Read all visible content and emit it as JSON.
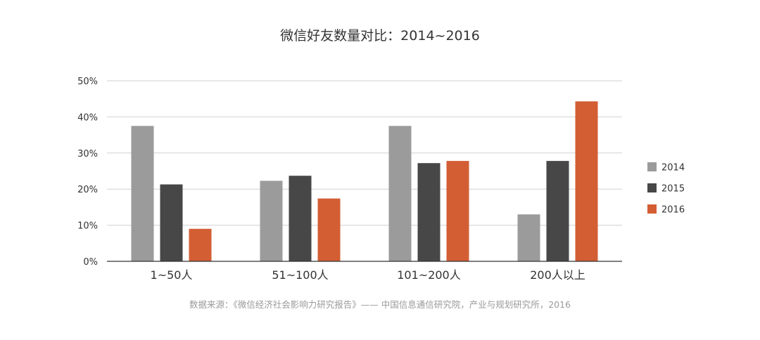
{
  "chart_data": {
    "type": "bar",
    "title": "微信好友数量对比：2014~2016",
    "source": "数据来源：《微信经济社会影响力研究报告》—— 中国信息通信研究院，产业与规划研究所，2016",
    "categories": [
      "1~50人",
      "51~100人",
      "101~200人",
      "200人以上"
    ],
    "series": [
      {
        "name": "2014",
        "color": "#9b9b9b",
        "values": [
          37.5,
          22.3,
          37.5,
          13.0
        ]
      },
      {
        "name": "2015",
        "color": "#474747",
        "values": [
          21.3,
          23.7,
          27.2,
          27.8
        ]
      },
      {
        "name": "2016",
        "color": "#d35e34",
        "values": [
          9.0,
          17.4,
          27.8,
          44.3
        ]
      }
    ],
    "ylim": [
      0,
      50
    ],
    "yticks": [
      0,
      10,
      20,
      30,
      40,
      50
    ],
    "ytick_labels": [
      "0%",
      "10%",
      "20%",
      "30%",
      "40%",
      "50%"
    ],
    "grid": true,
    "legend_position": "right"
  }
}
